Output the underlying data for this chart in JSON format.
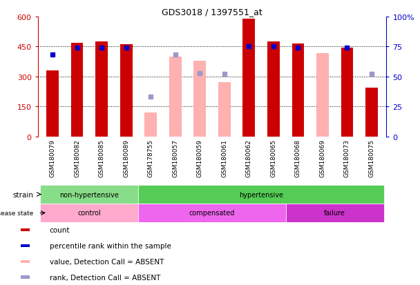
{
  "title": "GDS3018 / 1397551_at",
  "samples": [
    "GSM180079",
    "GSM180082",
    "GSM180085",
    "GSM180089",
    "GSM178755",
    "GSM180057",
    "GSM180059",
    "GSM180061",
    "GSM180062",
    "GSM180065",
    "GSM180068",
    "GSM180069",
    "GSM180073",
    "GSM180075"
  ],
  "count_values": [
    330,
    470,
    475,
    460,
    null,
    null,
    null,
    null,
    590,
    475,
    465,
    null,
    445,
    245
  ],
  "count_absent_values": [
    null,
    null,
    null,
    null,
    120,
    400,
    380,
    270,
    null,
    null,
    null,
    415,
    null,
    null
  ],
  "percentile_values_pct": [
    68,
    74,
    74,
    74,
    null,
    null,
    null,
    null,
    75,
    75,
    74,
    null,
    74,
    null
  ],
  "percentile_absent_values_pct": [
    null,
    null,
    null,
    null,
    33,
    68,
    53,
    52,
    null,
    null,
    null,
    null,
    null,
    52
  ],
  "ylim_left": [
    0,
    600
  ],
  "ylim_right": [
    0,
    100
  ],
  "yticks_left": [
    0,
    150,
    300,
    450,
    600
  ],
  "yticks_right": [
    0,
    25,
    50,
    75,
    100
  ],
  "strain_groups": [
    {
      "label": "non-hypertensive",
      "start": 0,
      "end": 4,
      "color": "#88DD88"
    },
    {
      "label": "hypertensive",
      "start": 4,
      "end": 14,
      "color": "#55CC55"
    }
  ],
  "disease_groups": [
    {
      "label": "control",
      "start": 0,
      "end": 4,
      "color": "#FFAACC"
    },
    {
      "label": "compensated",
      "start": 4,
      "end": 10,
      "color": "#EE66EE"
    },
    {
      "label": "failure",
      "start": 10,
      "end": 14,
      "color": "#CC33CC"
    }
  ],
  "count_color": "#CC0000",
  "count_absent_color": "#FFB0B0",
  "percentile_color": "#0000CC",
  "percentile_absent_color": "#9999CC",
  "bg_color": "#FFFFFF",
  "tick_label_color_left": "#CC0000",
  "tick_label_color_right": "#0000CC",
  "xtick_bg_color": "#CCCCCC",
  "legend_items": [
    {
      "label": "count",
      "color": "#CC0000"
    },
    {
      "label": "percentile rank within the sample",
      "color": "#0000CC"
    },
    {
      "label": "value, Detection Call = ABSENT",
      "color": "#FFB0B0"
    },
    {
      "label": "rank, Detection Call = ABSENT",
      "color": "#9999CC"
    }
  ]
}
